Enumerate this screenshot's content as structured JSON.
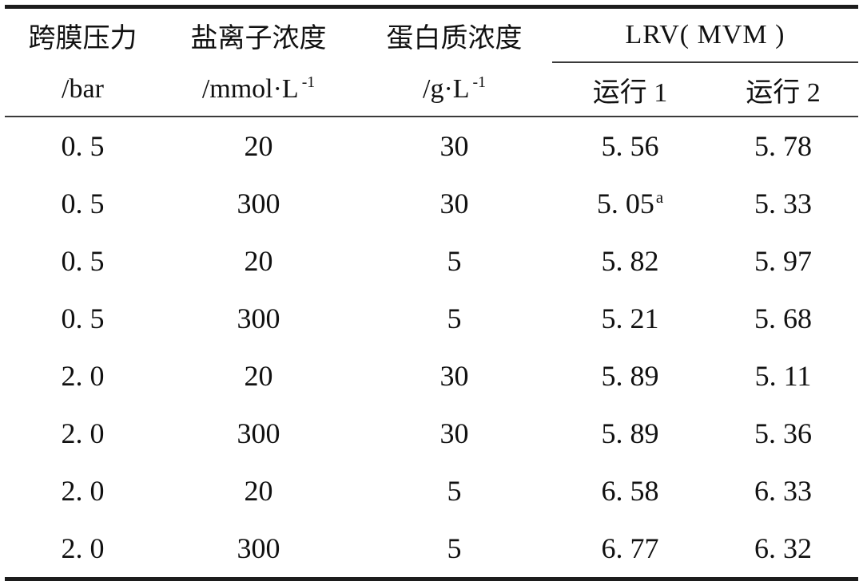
{
  "colors": {
    "text": "#111111",
    "thick_rule": "#1c1c1c",
    "thin_rule": "#3a3a3a"
  },
  "table": {
    "header": {
      "pressure_title": "跨膜压力",
      "pressure_unit": "/bar",
      "salt_title": "盐离子浓度",
      "salt_unit_prefix": "/mmol·L",
      "salt_unit_sup": "-1",
      "protein_title": "蛋白质浓度",
      "protein_unit_prefix": "/g·L",
      "protein_unit_sup": "-1",
      "lrv_group_title": "LRV( MVM )",
      "run1_label": "运行 1",
      "run2_label": "运行 2"
    },
    "rows": [
      [
        "0. 5",
        "20",
        "30",
        "5. 56",
        "5. 78"
      ],
      [
        "0. 5",
        "300",
        "30",
        "5. 05^a",
        "5. 33"
      ],
      [
        "0. 5",
        "20",
        "5",
        "5. 82",
        "5. 97"
      ],
      [
        "0. 5",
        "300",
        "5",
        "5. 21",
        "5. 68"
      ],
      [
        "2. 0",
        "20",
        "30",
        "5. 89",
        "5. 11"
      ],
      [
        "2. 0",
        "300",
        "30",
        "5. 89",
        "5. 36"
      ],
      [
        "2. 0",
        "20",
        "5",
        "6. 58",
        "6. 33"
      ],
      [
        "2. 0",
        "300",
        "5",
        "6. 77",
        "6. 32"
      ]
    ]
  }
}
